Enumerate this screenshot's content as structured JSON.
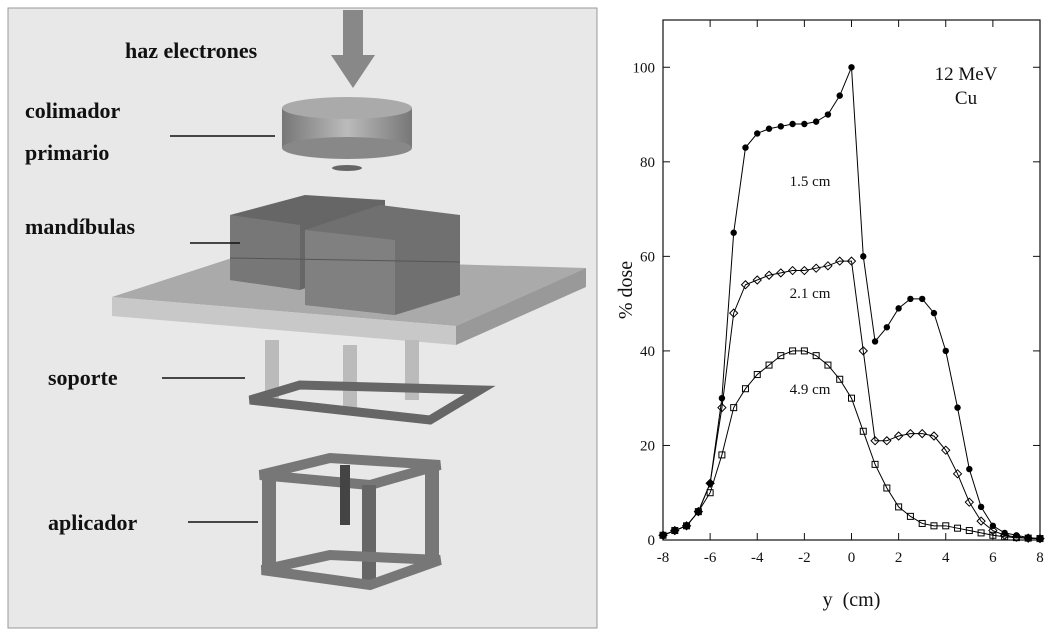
{
  "diagram": {
    "beam": "haz electrones",
    "collimator": [
      "colimador",
      "primario"
    ],
    "jaws": "mandíbulas",
    "support": "soporte",
    "applicator": "aplicador"
  },
  "chart_data": {
    "type": "line",
    "x_label": "y  (cm)",
    "y_label": "% dose",
    "annotations": [
      "12 MeV",
      "Cu"
    ],
    "x": [
      -8,
      -7.5,
      -7,
      -6.5,
      -6,
      -5.5,
      -5,
      -4.5,
      -4,
      -3.5,
      -3,
      -2.5,
      -2,
      -1.5,
      -1,
      -0.5,
      0,
      0.5,
      1,
      1.5,
      2,
      2.5,
      3,
      3.5,
      4,
      4.5,
      5,
      5.5,
      6,
      6.5,
      7,
      7.5,
      8
    ],
    "series": [
      {
        "name": "1.5 cm",
        "color": "#000000",
        "marker": "filled-circle",
        "values": [
          1,
          2,
          3,
          6,
          12,
          30,
          65,
          83,
          86,
          87,
          87.5,
          88,
          88,
          88.5,
          90,
          94,
          100,
          60,
          42,
          45,
          49,
          51,
          51,
          48,
          40,
          28,
          15,
          7,
          3,
          1.5,
          1,
          0.5,
          0.3
        ]
      },
      {
        "name": "2.1 cm",
        "color": "#000000",
        "marker": "diamond",
        "values": [
          1,
          2,
          3,
          6,
          12,
          28,
          48,
          54,
          55,
          56,
          56.5,
          57,
          57,
          57.5,
          58,
          59,
          59,
          40,
          21,
          21,
          22,
          22.5,
          22.5,
          22,
          19,
          14,
          8,
          4,
          2,
          1,
          0.6,
          0.4,
          0.3
        ]
      },
      {
        "name": "4.9 cm",
        "color": "#000000",
        "marker": "open-square",
        "values": [
          1,
          2,
          3,
          6,
          10,
          18,
          28,
          32,
          35,
          37,
          39,
          40,
          40,
          39,
          37,
          34,
          30,
          23,
          16,
          11,
          7,
          5,
          3.5,
          3,
          3,
          2.5,
          2,
          1.5,
          1,
          0.7,
          0.5,
          0.4,
          0.3
        ]
      }
    ],
    "xlim": [
      -8,
      8
    ],
    "xticks": [
      -8,
      -6,
      -4,
      -2,
      0,
      2,
      4,
      6,
      8
    ],
    "ylim": [
      0,
      110
    ],
    "yticks": [
      0,
      20,
      40,
      60,
      80,
      100
    ]
  }
}
